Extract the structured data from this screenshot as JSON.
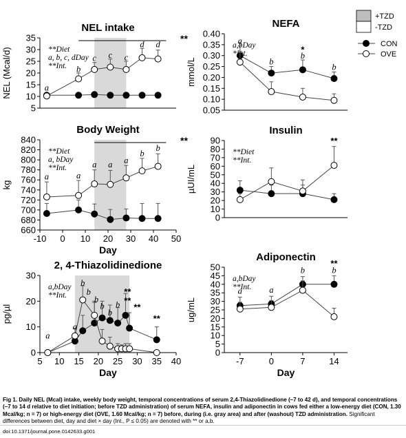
{
  "legend_tzd": {
    "shaded": "+TZD",
    "unshaded": "-TZD"
  },
  "legend_diet": {
    "con": "CON",
    "ove": "OVE"
  },
  "caption": {
    "bold": "Fig 1. Daily NEL (Mcal) intake, weekly body weight, temporal concentrations of serum 2,4-Thiazolidinedione (–7 to 42 d), and temporal concentrations (–7 to 14 d relative to diet initiation; before TZD administration) of serum NEFA, insulin and adiponectin in cows fed either a low-energy diet (CON, 1.30 Mcal/kg; n = 7) or high-energy diet (OVE, 1.60 Mcal/kg; n = 7) before, during (i.e. gray area) and after (washout) TZD administration.",
    "normal": " Significant differences between diet, day and diet × day (Int., P ≤ 0.05) are denoted with ** or a,b."
  },
  "doi": "doi:10.1371/journal.pone.0142633.g001",
  "colors": {
    "con": "#000000",
    "ove": "#ffffff",
    "shade": "#d9d9d9",
    "line": "#444444"
  },
  "chart_data": [
    {
      "id": "nel",
      "type": "line",
      "title": "NEL intake",
      "ylabel": "NEL (Mcal/d)",
      "xlabel": "",
      "xlim": [
        -10,
        50
      ],
      "ylim": [
        5,
        35
      ],
      "xticks": [],
      "yticks": [
        5,
        10,
        15,
        20,
        25,
        30,
        35
      ],
      "shade": [
        14,
        28
      ],
      "series": [
        {
          "name": "CON",
          "x": [
            -7,
            7,
            14,
            21,
            28,
            35,
            42
          ],
          "y": [
            10.5,
            10.5,
            10.8,
            10.5,
            10.5,
            10.5,
            10.5
          ],
          "err": [
            1.0,
            1.0,
            1.0,
            1.0,
            1.0,
            1.0,
            1.0
          ]
        },
        {
          "name": "OVE",
          "x": [
            -7,
            7,
            14,
            21,
            28,
            35,
            42
          ],
          "y": [
            10.2,
            17.5,
            21.5,
            22.5,
            21.5,
            26.5,
            26.0
          ],
          "err": [
            1.2,
            2.5,
            3.0,
            3.5,
            3.5,
            4.0,
            3.8
          ]
        }
      ],
      "bar_label": "**",
      "bar_x": [
        7,
        48
      ],
      "labels": [
        {
          "x": -7,
          "y": 12.5,
          "t": "a"
        },
        {
          "x": 7,
          "y": 20.5,
          "t": "b"
        },
        {
          "x": 14,
          "y": 25.2,
          "t": "c"
        },
        {
          "x": 21,
          "y": 26.5,
          "t": "c"
        },
        {
          "x": 28,
          "y": 25.5,
          "t": "c"
        },
        {
          "x": 35,
          "y": 31.0,
          "t": "d"
        },
        {
          "x": 42,
          "y": 31.0,
          "t": "d"
        }
      ],
      "notes": [
        "**Diet",
        "a, b, c, dDay",
        "**Int."
      ],
      "side_label": "**"
    },
    {
      "id": "bw",
      "type": "line",
      "title": "Body Weight",
      "ylabel": "kg",
      "xlabel": "Day",
      "xlim": [
        -10,
        50
      ],
      "ylim": [
        660,
        840
      ],
      "xticks": [
        -10,
        0,
        10,
        20,
        30,
        40,
        50
      ],
      "yticks": [
        660,
        680,
        700,
        720,
        740,
        760,
        780,
        800,
        820,
        840
      ],
      "shade": [
        14,
        28
      ],
      "series": [
        {
          "name": "CON",
          "x": [
            -7,
            7,
            14,
            21,
            28,
            35,
            42
          ],
          "y": [
            693,
            700,
            692,
            681,
            684,
            683,
            683
          ],
          "err": [
            20,
            20,
            20,
            20,
            18,
            30,
            30
          ]
        },
        {
          "name": "OVE",
          "x": [
            -7,
            7,
            14,
            21,
            28,
            35,
            42
          ],
          "y": [
            726,
            729,
            752,
            751,
            764,
            778,
            787
          ],
          "err": [
            30,
            30,
            28,
            28,
            25,
            25,
            25
          ]
        }
      ],
      "bar_label": "**",
      "bar_x": [
        14,
        48
      ],
      "labels": [
        {
          "x": -7,
          "y": 761,
          "t": "a"
        },
        {
          "x": 7,
          "y": 763,
          "t": "a"
        },
        {
          "x": 14,
          "y": 785,
          "t": "a"
        },
        {
          "x": 21,
          "y": 785,
          "t": "a"
        },
        {
          "x": 28,
          "y": 793,
          "t": "a"
        },
        {
          "x": 35,
          "y": 807,
          "t": "b"
        },
        {
          "x": 42,
          "y": 818,
          "t": "b"
        }
      ],
      "notes": [
        "**Diet",
        "a, bDay",
        "**Int."
      ],
      "side_label": "**"
    },
    {
      "id": "tzd",
      "type": "line",
      "title": "2, 4-Thiazolidinedione",
      "ylabel": "pg/µl",
      "xlabel": "Day",
      "xlim": [
        5,
        40
      ],
      "ylim": [
        0,
        30
      ],
      "xticks": [
        5,
        10,
        15,
        20,
        25,
        30,
        35,
        40
      ],
      "yticks": [
        0,
        10,
        20,
        30
      ],
      "shade": [
        14,
        28
      ],
      "series": [
        {
          "name": "CON",
          "x": [
            7,
            14,
            16,
            19,
            21,
            23,
            25,
            27,
            28,
            35
          ],
          "y": [
            0,
            4.5,
            8.5,
            11.5,
            13.5,
            12.5,
            11.5,
            14.5,
            9.5,
            5.0
          ],
          "err": [
            0,
            3.0,
            6.0,
            8.0,
            6.5,
            6.0,
            6.0,
            8.5,
            6.0,
            5.0
          ]
        },
        {
          "name": "OVE",
          "x": [
            7,
            14,
            16,
            19,
            21,
            23,
            25,
            26,
            27,
            28,
            35
          ],
          "y": [
            0,
            6.5,
            20.5,
            14.5,
            4.5,
            2.5,
            1.5,
            1.5,
            1.5,
            1.5,
            0
          ],
          "err": [
            0,
            3.0,
            5.5,
            5.5,
            4.5,
            3.5,
            2.0,
            1.5,
            2.0,
            2.0,
            0
          ]
        }
      ],
      "labels": [
        {
          "x": 7,
          "y": 5.5,
          "t": "a"
        },
        {
          "x": 14,
          "y": 9.0,
          "t": "a"
        },
        {
          "x": 16,
          "y": 26.0,
          "t": "b"
        },
        {
          "x": 17.5,
          "y": 22.5,
          "t": "b"
        },
        {
          "x": 19.5,
          "y": 19.5,
          "t": "b"
        },
        {
          "x": 21,
          "y": 17.0,
          "t": "b"
        },
        {
          "x": 23,
          "y": 14.5,
          "t": "b"
        },
        {
          "x": 25,
          "y": 17.5,
          "t": "b"
        }
      ],
      "stars": [
        {
          "x": 27.5,
          "y": 22.5
        },
        {
          "x": 27.5,
          "y": 19.0
        },
        {
          "x": 30.0,
          "y": 16.5
        },
        {
          "x": 35,
          "y": 12.0
        }
      ],
      "notes": [
        "a,bDay",
        "**Int."
      ]
    },
    {
      "id": "nefa",
      "type": "line",
      "title": "NEFA",
      "ylabel": "mmol/L",
      "xlabel": "",
      "xlim": [
        -10.5,
        17
      ],
      "ylim": [
        0.05,
        0.4
      ],
      "xticks": [],
      "yticks": [
        0.05,
        0.1,
        0.15,
        0.2,
        0.25,
        0.3,
        0.35,
        0.4
      ],
      "series": [
        {
          "name": "CON",
          "x": [
            -7,
            0,
            7,
            14
          ],
          "y": [
            0.3,
            0.22,
            0.235,
            0.195
          ],
          "err": [
            0.045,
            0.03,
            0.045,
            0.03
          ]
        },
        {
          "name": "OVE",
          "x": [
            -7,
            0,
            7,
            14
          ],
          "y": [
            0.27,
            0.135,
            0.11,
            0.095
          ],
          "err": [
            0.05,
            0.045,
            0.04,
            0.03
          ]
        }
      ],
      "labels": [
        {
          "x": -7,
          "y": 0.355,
          "t": "a"
        },
        {
          "x": 0,
          "y": 0.259,
          "t": "b"
        },
        {
          "x": 7,
          "y": 0.287,
          "t": "b"
        },
        {
          "x": 14,
          "y": 0.235,
          "t": "b"
        }
      ],
      "star1": {
        "x": 7,
        "y": 0.313
      },
      "notes": [
        "a,bDay",
        "*Int."
      ]
    },
    {
      "id": "insulin",
      "type": "line",
      "title": "Insulin",
      "ylabel": "µUI/mL",
      "xlabel": "",
      "xlim": [
        -10.5,
        17
      ],
      "ylim": [
        0,
        90
      ],
      "xticks": [],
      "yticks": [
        0,
        10,
        20,
        30,
        40,
        50,
        60,
        70,
        80,
        90
      ],
      "series": [
        {
          "name": "CON",
          "x": [
            -7,
            0,
            7,
            14
          ],
          "y": [
            32,
            28,
            28,
            21
          ],
          "err": [
            11,
            10,
            10,
            7
          ]
        },
        {
          "name": "OVE",
          "x": [
            -7,
            0,
            7,
            14
          ],
          "y": [
            21,
            42,
            31,
            61
          ],
          "err": [
            7,
            16,
            13,
            22
          ]
        }
      ],
      "stars": [
        {
          "x": 14,
          "y": 86
        }
      ],
      "notes": [
        "**Diet",
        "**Int."
      ]
    },
    {
      "id": "adipo",
      "type": "line",
      "title": "Adiponectin",
      "ylabel": "ug/mL",
      "xlabel": "Day",
      "xlim": [
        -10.5,
        17
      ],
      "ylim": [
        0,
        50
      ],
      "xticks": [
        -7,
        0,
        7,
        14
      ],
      "yticks": [
        0,
        5,
        10,
        15,
        20,
        25,
        30,
        35,
        40,
        45,
        50
      ],
      "series": [
        {
          "name": "CON",
          "x": [
            -7,
            0,
            7,
            14
          ],
          "y": [
            27.5,
            28.5,
            40.0,
            40.0
          ],
          "err": [
            5.0,
            4.5,
            4.5,
            5.0
          ]
        },
        {
          "name": "OVE",
          "x": [
            -7,
            0,
            7,
            14
          ],
          "y": [
            25.5,
            26.5,
            36.5,
            21.0
          ],
          "err": [
            4.0,
            4.0,
            5.5,
            5.0
          ]
        }
      ],
      "labels": [
        {
          "x": -7,
          "y": 34.5,
          "t": "a"
        },
        {
          "x": 0,
          "y": 35.0,
          "t": "a"
        },
        {
          "x": 7,
          "y": 46.5,
          "t": "b"
        },
        {
          "x": 14,
          "y": 46.5,
          "t": "b"
        }
      ],
      "stars": [
        {
          "x": 14,
          "y": 50.5
        }
      ],
      "notes": [
        "a,bDay",
        "**Int."
      ]
    }
  ]
}
